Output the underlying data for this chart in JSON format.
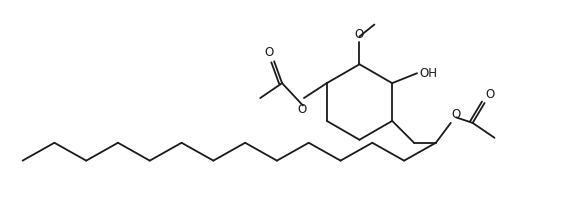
{
  "bg_color": "#ffffff",
  "line_color": "#1a1a1a",
  "line_width": 1.3,
  "font_size": 8.5,
  "fig_width": 5.62,
  "fig_height": 2.12,
  "dpi": 100,
  "xlim": [
    0,
    56.2
  ],
  "ylim": [
    0,
    21.2
  ]
}
